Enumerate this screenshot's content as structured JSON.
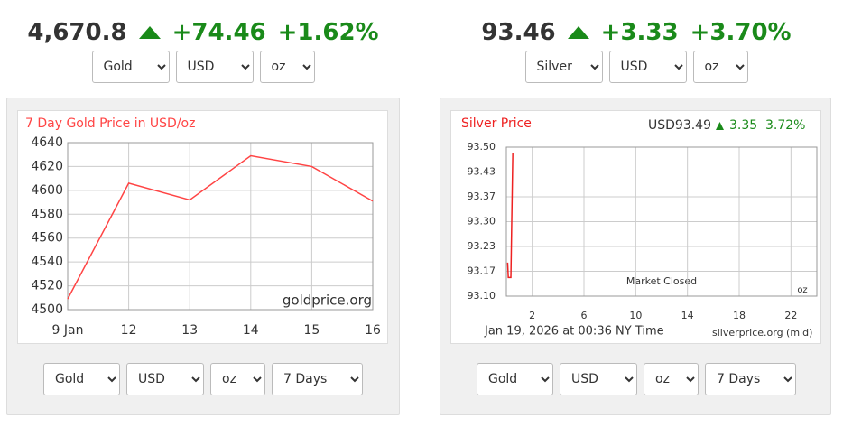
{
  "gold": {
    "price": "4,670.8",
    "change": "+74.46",
    "percent": "+1.62%",
    "selects": [
      "Gold",
      "USD",
      "oz"
    ],
    "chart": {
      "type": "line",
      "title": "7 Day Gold Price in USD/oz",
      "watermark": "goldprice.org",
      "categories": [
        "9 Jan",
        "12",
        "13",
        "14",
        "15",
        "16"
      ],
      "values": [
        4509,
        4606,
        4592,
        4629,
        4620,
        4591
      ],
      "ylim": [
        4500,
        4640
      ],
      "yticks": [
        4500,
        4520,
        4540,
        4560,
        4580,
        4600,
        4620,
        4640
      ],
      "color": "#ff4444",
      "grid": true
    },
    "controls": [
      "Gold",
      "USD",
      "oz",
      "7 Days"
    ]
  },
  "silver": {
    "price": "93.46",
    "change": "+3.33",
    "percent": "+3.70%",
    "selects": [
      "Silver",
      "USD",
      "oz"
    ],
    "chart": {
      "type": "line",
      "title": "Silver Price",
      "quote": "USD93.49",
      "quote_change": "3.35",
      "quote_percent": "3.72%",
      "x": [
        0.1,
        0.15,
        0.35,
        0.5
      ],
      "values": [
        93.19,
        93.15,
        93.15,
        93.485
      ],
      "xlim": [
        0,
        24
      ],
      "xticks": [
        2,
        6,
        10,
        14,
        18,
        22
      ],
      "ylim": [
        93.1,
        93.5
      ],
      "yticks": [
        {
          "value": 93.1,
          "label": "93.10"
        },
        {
          "value": 93.1667,
          "label": "93.17"
        },
        {
          "value": 93.2333,
          "label": "93.23"
        },
        {
          "value": 93.3,
          "label": "93.30"
        },
        {
          "value": 93.3667,
          "label": "93.37"
        },
        {
          "value": 93.4333,
          "label": "93.43"
        },
        {
          "value": 93.5,
          "label": "93.50"
        }
      ],
      "color": "#ee2222",
      "grid": true,
      "annotation": "Market Closed",
      "unit": "oz",
      "timestamp": "Jan 19, 2026 at 00:36 NY Time",
      "source": "silverprice.org (mid)"
    },
    "controls": [
      "Gold",
      "USD",
      "oz",
      "7 Days"
    ]
  }
}
